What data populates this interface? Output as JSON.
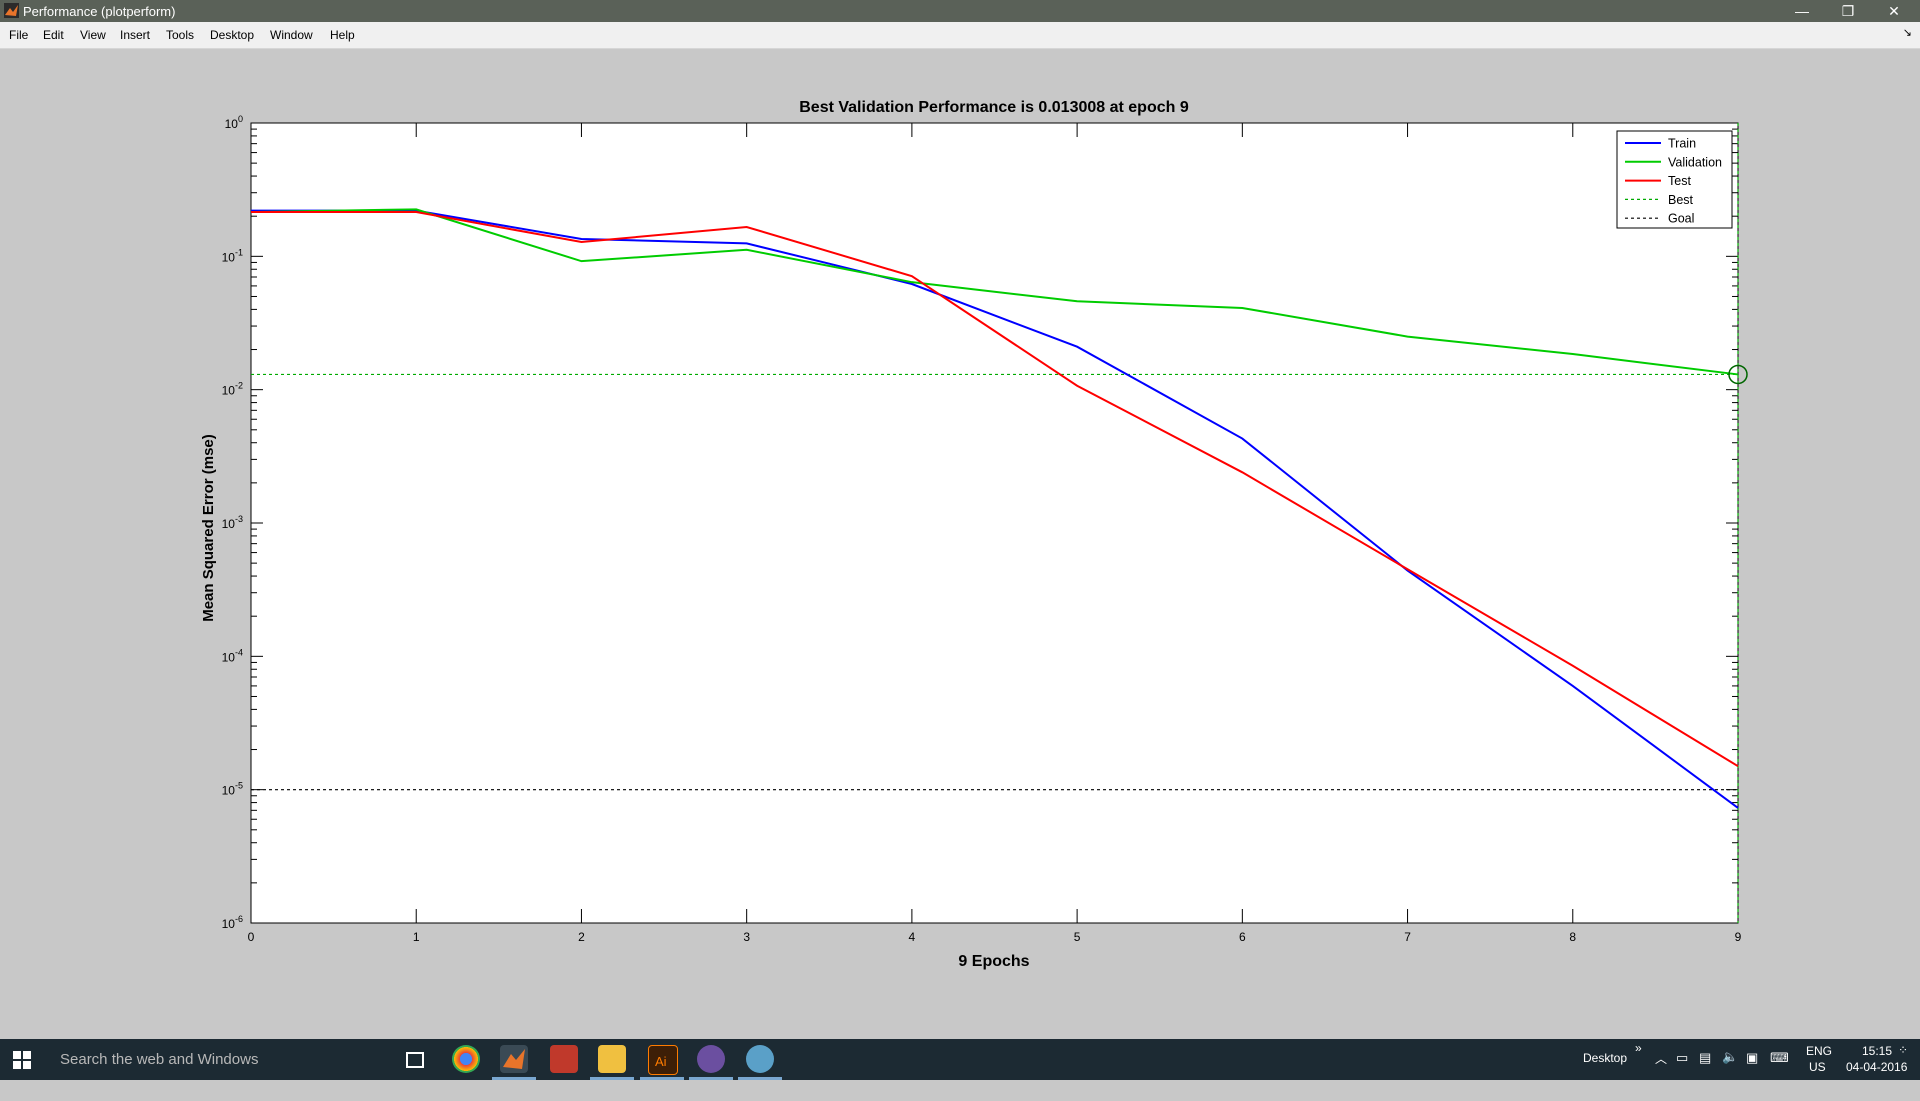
{
  "window": {
    "title": "Performance (plotperform)"
  },
  "menu": [
    "File",
    "Edit",
    "View",
    "Insert",
    "Tools",
    "Desktop",
    "Window",
    "Help"
  ],
  "chart_data": {
    "type": "line",
    "title": "Best Validation Performance is 0.013008 at epoch 9",
    "xlabel": "9 Epochs",
    "ylabel": "Mean Squared Error  (mse)",
    "xlim": [
      0,
      9
    ],
    "ylim": [
      1e-06,
      1
    ],
    "yscale": "log",
    "xticks": [
      "0",
      "1",
      "2",
      "3",
      "4",
      "5",
      "6",
      "7",
      "8",
      "9"
    ],
    "yticks": [
      {
        "base": "10",
        "exp": "0"
      },
      {
        "base": "10",
        "exp": "-1"
      },
      {
        "base": "10",
        "exp": "-2"
      },
      {
        "base": "10",
        "exp": "-3"
      },
      {
        "base": "10",
        "exp": "-4"
      },
      {
        "base": "10",
        "exp": "-5"
      },
      {
        "base": "10",
        "exp": "-6"
      }
    ],
    "x": [
      0,
      1,
      2,
      3,
      4,
      5,
      6,
      7,
      8,
      9
    ],
    "series": [
      {
        "name": "Train",
        "color": "#0000ff",
        "values": [
          0.22,
          0.22,
          0.135,
          0.125,
          0.062,
          0.021,
          0.0043,
          0.00044,
          6e-05,
          7.3e-06
        ]
      },
      {
        "name": "Validation",
        "color": "#00cc00",
        "values": [
          0.215,
          0.225,
          0.092,
          0.112,
          0.064,
          0.046,
          0.041,
          0.025,
          0.0185,
          0.013008
        ]
      },
      {
        "name": "Test",
        "color": "#ff0000",
        "values": [
          0.215,
          0.215,
          0.128,
          0.166,
          0.071,
          0.0107,
          0.0024,
          0.00045,
          8.5e-05,
          1.5e-05
        ]
      }
    ],
    "best": {
      "name": "Best",
      "epoch": 9,
      "value": 0.013008,
      "color": "#00aa00"
    },
    "goal": {
      "name": "Goal",
      "value": 1e-05,
      "color": "#000000"
    },
    "legend_position": "top-right",
    "grid": false
  },
  "taskbar": {
    "search_placeholder": "Search the web and Windows",
    "desktop_label": "Desktop",
    "language": "ENG",
    "region": "US",
    "time": "15:15",
    "date": "04-04-2016"
  }
}
